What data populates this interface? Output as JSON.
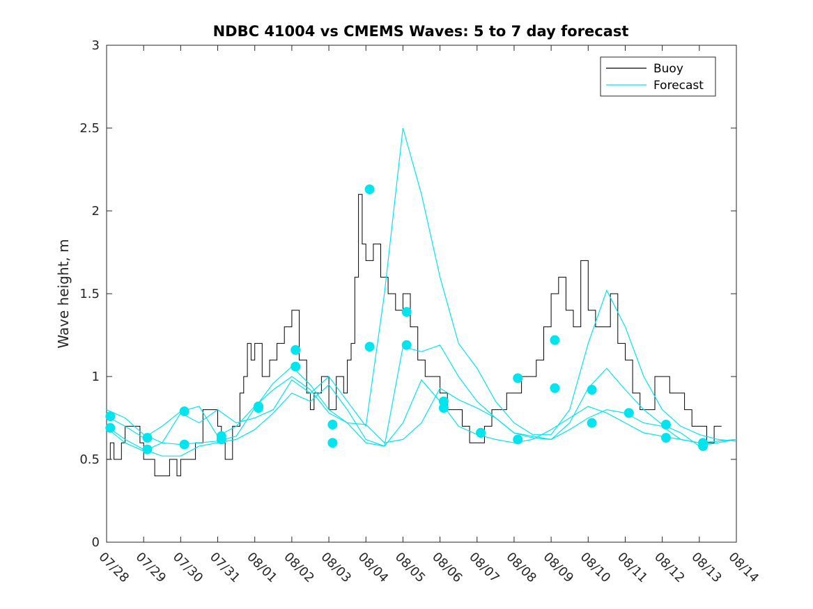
{
  "chart_data": {
    "type": "line",
    "title": "NDBC 41004 vs CMEMS Waves: 5 to 7 day forecast",
    "ylabel": "Wave height, m",
    "xlabel": "",
    "ylim": [
      0,
      3
    ],
    "yticks": [
      "0",
      "0.5",
      "1",
      "1.5",
      "2",
      "2.5",
      "3"
    ],
    "x_unit": "day",
    "xlim": [
      0,
      17
    ],
    "xticks": [
      "07/28",
      "07/29",
      "07/30",
      "07/31",
      "08/01",
      "08/02",
      "08/03",
      "08/04",
      "08/05",
      "08/06",
      "08/07",
      "08/08",
      "08/09",
      "08/10",
      "08/11",
      "08/12",
      "08/13",
      "08/14"
    ],
    "legend": {
      "position": "top-right",
      "entries": [
        {
          "name": "Buoy",
          "color": "#000000"
        },
        {
          "name": "Forecast",
          "color": "#00e5ee"
        }
      ]
    },
    "colors": {
      "buoy": "#000000",
      "forecast": "#00e5ee",
      "marker": "#00e5ee"
    },
    "series": [
      {
        "name": "Buoy",
        "color": "#000000",
        "x": [
          0,
          0.1,
          0.2,
          0.4,
          0.5,
          0.6,
          0.9,
          1.0,
          1.1,
          1.3,
          1.5,
          1.7,
          1.9,
          2.0,
          2.2,
          2.4,
          2.6,
          2.8,
          3.0,
          3.1,
          3.2,
          3.4,
          3.6,
          3.7,
          3.8,
          3.9,
          4.0,
          4.2,
          4.4,
          4.6,
          4.8,
          5.0,
          5.2,
          5.4,
          5.5,
          5.6,
          5.8,
          6.0,
          6.2,
          6.4,
          6.5,
          6.6,
          6.7,
          6.8,
          6.9,
          7.0,
          7.2,
          7.4,
          7.6,
          7.8,
          8.0,
          8.2,
          8.4,
          8.6,
          8.8,
          9.0,
          9.2,
          9.4,
          9.6,
          9.8,
          10.0,
          10.2,
          10.4,
          10.6,
          10.8,
          11.0,
          11.2,
          11.4,
          11.6,
          11.8,
          12.0,
          12.2,
          12.4,
          12.6,
          12.8,
          13.0,
          13.2,
          13.4,
          13.6,
          13.8,
          14.0,
          14.2,
          14.4,
          14.6,
          14.8,
          15.0,
          15.2,
          15.4,
          15.6,
          15.8,
          16.0,
          16.2,
          16.4,
          16.6
        ],
        "y": [
          0.5,
          0.6,
          0.5,
          0.6,
          0.7,
          0.7,
          0.6,
          0.5,
          0.5,
          0.4,
          0.4,
          0.5,
          0.4,
          0.5,
          0.5,
          0.6,
          0.8,
          0.8,
          0.7,
          0.6,
          0.5,
          0.7,
          0.9,
          1.0,
          1.2,
          1.1,
          1.2,
          1.0,
          1.1,
          1.2,
          1.3,
          1.4,
          1.1,
          0.9,
          0.8,
          0.9,
          1.0,
          0.8,
          1.0,
          0.9,
          1.1,
          1.2,
          1.6,
          2.1,
          1.8,
          1.7,
          1.8,
          1.6,
          1.5,
          1.4,
          1.5,
          1.3,
          1.1,
          1.0,
          1.0,
          0.9,
          0.8,
          0.8,
          0.7,
          0.6,
          0.6,
          0.7,
          0.8,
          0.8,
          0.9,
          0.9,
          1.0,
          1.0,
          1.1,
          1.3,
          1.5,
          1.6,
          1.4,
          1.3,
          1.7,
          1.4,
          1.3,
          1.3,
          1.5,
          1.2,
          1.1,
          0.9,
          0.8,
          0.8,
          1.0,
          1.0,
          0.9,
          0.9,
          0.8,
          0.7,
          0.7,
          0.6,
          0.7,
          0.7
        ]
      },
      {
        "name": "Forecast",
        "color": "#00e5ee",
        "x": [
          0.0,
          0.5,
          1.0,
          1.5,
          2.0,
          2.5,
          3.0,
          3.5,
          4.0,
          4.5,
          5.0,
          5.5,
          6.0,
          6.5,
          7.0,
          7.5,
          8.0,
          8.5,
          9.0,
          9.5,
          10.0,
          10.5,
          11.0,
          11.5,
          12.0,
          12.5,
          13.0,
          13.5,
          14.0,
          14.5,
          15.0,
          15.5,
          16.0,
          16.5,
          17.0
        ],
        "y": [
          0.8,
          0.75,
          0.65,
          0.6,
          0.78,
          0.72,
          0.8,
          0.72,
          0.75,
          0.8,
          0.98,
          0.9,
          1.0,
          0.85,
          0.7,
          1.5,
          2.5,
          2.1,
          1.6,
          1.2,
          1.05,
          0.85,
          0.72,
          0.65,
          0.65,
          0.8,
          1.2,
          1.52,
          1.3,
          1.0,
          0.8,
          0.7,
          0.65,
          0.62,
          0.61
        ]
      },
      {
        "name": "Forecast",
        "color": "#00e5ee",
        "x": [
          0.0,
          0.5,
          1.0,
          1.5,
          2.0,
          2.5,
          3.0,
          3.5,
          4.0,
          4.5,
          5.0,
          5.5,
          6.0,
          6.5,
          7.0,
          7.5,
          8.0,
          8.5,
          9.0,
          9.5,
          10.0,
          10.5,
          11.0,
          11.5,
          12.0,
          12.5,
          13.0,
          13.5,
          14.0,
          14.5,
          15.0,
          15.5,
          16.0,
          16.5,
          17.0
        ],
        "y": [
          0.7,
          0.62,
          0.56,
          0.52,
          0.52,
          0.58,
          0.6,
          0.62,
          0.68,
          0.78,
          0.9,
          0.85,
          0.95,
          0.8,
          0.62,
          0.58,
          0.72,
          0.98,
          0.85,
          0.7,
          0.65,
          0.62,
          0.6,
          0.62,
          0.68,
          0.75,
          0.82,
          0.78,
          0.72,
          0.66,
          0.64,
          0.62,
          0.6,
          0.61,
          0.62
        ]
      },
      {
        "name": "Forecast",
        "color": "#00e5ee",
        "x": [
          0.0,
          0.5,
          1.0,
          1.5,
          2.0,
          2.5,
          3.0,
          3.5,
          4.0,
          4.5,
          5.0,
          5.5,
          6.0,
          6.5,
          7.0,
          7.5,
          8.0,
          8.5,
          9.0,
          9.5,
          10.0,
          10.5,
          11.0,
          11.5,
          12.0,
          12.5,
          13.0,
          13.5,
          14.0,
          14.5,
          15.0,
          15.5,
          16.0,
          16.5,
          17.0
        ],
        "y": [
          0.76,
          0.7,
          0.63,
          0.7,
          0.79,
          0.82,
          0.64,
          0.7,
          0.82,
          0.92,
          1.0,
          0.92,
          0.78,
          0.72,
          0.71,
          0.6,
          0.62,
          0.72,
          0.93,
          0.86,
          0.81,
          0.75,
          0.66,
          0.64,
          0.62,
          0.72,
          0.93,
          1.05,
          0.92,
          0.8,
          0.71,
          0.66,
          0.58,
          0.6,
          0.62
        ]
      },
      {
        "name": "Forecast",
        "color": "#00e5ee",
        "x": [
          0.0,
          0.5,
          1.0,
          1.5,
          2.0,
          2.5,
          3.0,
          3.5,
          4.0,
          4.5,
          5.0,
          5.5,
          6.0,
          6.5,
          7.0,
          7.5,
          8.0,
          8.5,
          9.0,
          9.5,
          10.0,
          10.5,
          11.0,
          11.5,
          12.0,
          12.5,
          13.0,
          13.5,
          14.0,
          14.5,
          15.0,
          15.5,
          16.0,
          16.5,
          17.0
        ],
        "y": [
          0.69,
          0.6,
          0.55,
          0.6,
          0.59,
          0.6,
          0.61,
          0.64,
          0.81,
          0.96,
          1.06,
          0.95,
          0.8,
          0.72,
          0.6,
          0.58,
          1.18,
          1.15,
          1.19,
          1.0,
          0.85,
          0.75,
          0.66,
          0.63,
          0.62,
          0.68,
          0.75,
          0.8,
          0.78,
          0.72,
          0.7,
          0.62,
          0.6,
          0.61,
          0.62
        ]
      }
    ],
    "markers": {
      "x": [
        0.1,
        0.1,
        1.1,
        1.1,
        2.1,
        2.1,
        3.1,
        3.1,
        4.1,
        4.1,
        5.1,
        5.1,
        6.1,
        6.1,
        7.1,
        7.1,
        8.1,
        8.1,
        9.1,
        9.1,
        10.1,
        10.1,
        11.1,
        11.1,
        12.1,
        12.1,
        13.1,
        13.1,
        14.1,
        14.1,
        15.1,
        15.1,
        16.1,
        16.1
      ],
      "y": [
        0.76,
        0.69,
        0.63,
        0.56,
        0.79,
        0.59,
        0.64,
        0.62,
        0.82,
        0.81,
        1.16,
        1.06,
        0.71,
        0.6,
        2.13,
        1.18,
        1.39,
        1.19,
        0.85,
        0.81,
        0.66,
        0.66,
        0.62,
        0.99,
        0.93,
        1.22,
        0.92,
        0.72,
        0.78,
        0.78,
        0.71,
        0.63,
        0.6,
        0.58
      ]
    }
  }
}
